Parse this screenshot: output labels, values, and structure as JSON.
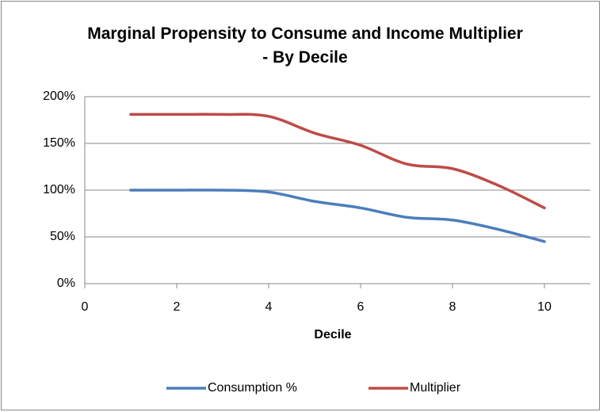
{
  "chart_data": {
    "type": "line",
    "title": "Marginal Propensity to Consume and Income Multiplier - By Decile",
    "x_label": "Decile",
    "x": [
      1,
      2,
      3,
      4,
      5,
      6,
      7,
      8,
      9,
      10
    ],
    "series": [
      {
        "name": "Consumption %",
        "color": "#4a7ebb",
        "values": [
          100,
          100,
          100,
          98,
          88,
          81,
          71,
          68,
          58,
          45
        ]
      },
      {
        "name": "Multiplier",
        "color": "#be4b48",
        "values": [
          181,
          181,
          181,
          179,
          161,
          148,
          128,
          123,
          105,
          81
        ]
      }
    ],
    "xlim": [
      0,
      11
    ],
    "xticks": [
      0,
      2,
      4,
      6,
      8,
      10
    ],
    "ylim": [
      0,
      200
    ],
    "yticks": [
      {
        "value": 0,
        "label": "0%"
      },
      {
        "value": 50,
        "label": "50%"
      },
      {
        "value": 100,
        "label": "100%"
      },
      {
        "value": 150,
        "label": "150%"
      },
      {
        "value": 200,
        "label": "200%"
      }
    ],
    "grid": true,
    "legend": "bottom",
    "smooth": true
  }
}
